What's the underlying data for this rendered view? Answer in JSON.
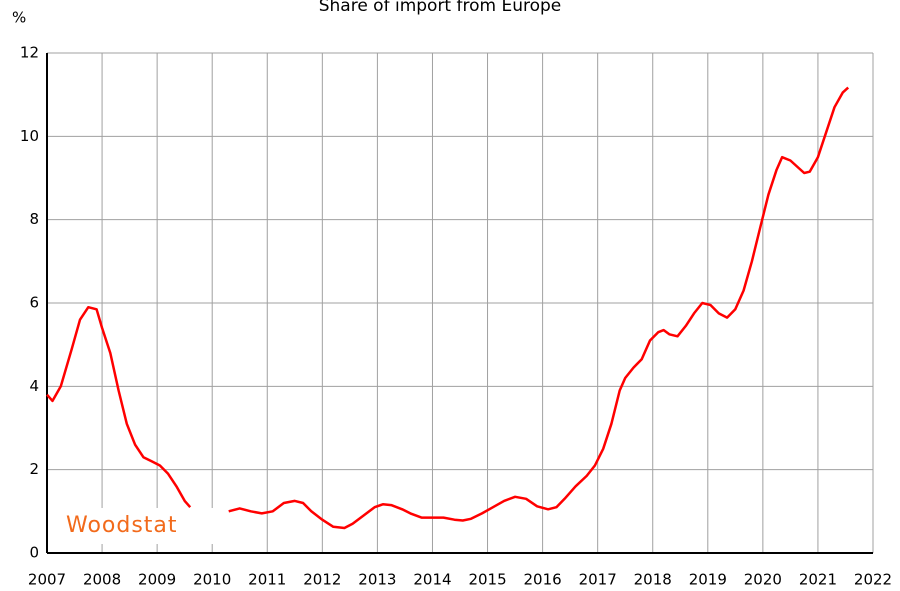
{
  "chart_data": {
    "type": "line",
    "title": "Share of import from Europe",
    "y_label": "%",
    "watermark": "Woodstat",
    "color": "#ff0000",
    "grid": true,
    "xlim": [
      2007,
      2022
    ],
    "ylim": [
      0,
      12
    ],
    "xticks": [
      2007,
      2008,
      2009,
      2010,
      2011,
      2012,
      2013,
      2014,
      2015,
      2016,
      2017,
      2018,
      2019,
      2020,
      2021,
      2022
    ],
    "yticks": [
      0,
      2,
      4,
      6,
      8,
      10,
      12
    ],
    "x": [
      2007.0,
      2007.1,
      2007.25,
      2007.45,
      2007.6,
      2007.75,
      2007.9,
      2008.0,
      2008.15,
      2008.3,
      2008.45,
      2008.6,
      2008.75,
      2008.9,
      2009.05,
      2009.2,
      2009.35,
      2009.5,
      2009.6,
      2009.95,
      2010.3,
      2010.5,
      2010.7,
      2010.9,
      2011.1,
      2011.3,
      2011.5,
      2011.65,
      2011.8,
      2012.0,
      2012.2,
      2012.4,
      2012.55,
      2012.75,
      2012.95,
      2013.1,
      2013.25,
      2013.45,
      2013.6,
      2013.8,
      2014.0,
      2014.2,
      2014.4,
      2014.55,
      2014.7,
      2014.9,
      2015.1,
      2015.3,
      2015.5,
      2015.7,
      2015.9,
      2016.1,
      2016.25,
      2016.4,
      2016.6,
      2016.8,
      2016.95,
      2017.1,
      2017.25,
      2017.4,
      2017.5,
      2017.65,
      2017.8,
      2017.95,
      2018.1,
      2018.2,
      2018.3,
      2018.45,
      2018.6,
      2018.75,
      2018.9,
      2019.05,
      2019.2,
      2019.35,
      2019.5,
      2019.65,
      2019.8,
      2019.95,
      2020.1,
      2020.25,
      2020.35,
      2020.5,
      2020.6,
      2020.75,
      2020.85,
      2021.0,
      2021.15,
      2021.3,
      2021.45,
      2021.55
    ],
    "values": [
      3.8,
      3.65,
      4.0,
      4.9,
      5.6,
      5.9,
      5.85,
      5.4,
      4.8,
      3.9,
      3.1,
      2.6,
      2.3,
      2.2,
      2.1,
      1.9,
      1.6,
      1.25,
      1.1,
      null,
      1.0,
      1.07,
      1.0,
      0.95,
      1.0,
      1.2,
      1.25,
      1.2,
      1.0,
      0.8,
      0.63,
      0.6,
      0.7,
      0.9,
      1.1,
      1.17,
      1.15,
      1.05,
      0.95,
      0.85,
      0.85,
      0.85,
      0.8,
      0.78,
      0.82,
      0.95,
      1.1,
      1.25,
      1.35,
      1.3,
      1.12,
      1.05,
      1.1,
      1.3,
      1.6,
      1.85,
      2.1,
      2.5,
      3.1,
      3.9,
      4.2,
      4.45,
      4.65,
      5.1,
      5.3,
      5.35,
      5.25,
      5.2,
      5.45,
      5.75,
      6.0,
      5.95,
      5.75,
      5.65,
      5.85,
      6.3,
      7.0,
      7.8,
      8.6,
      9.2,
      9.5,
      9.42,
      9.3,
      9.12,
      9.15,
      9.5,
      10.1,
      10.7,
      11.05,
      11.17
    ]
  }
}
